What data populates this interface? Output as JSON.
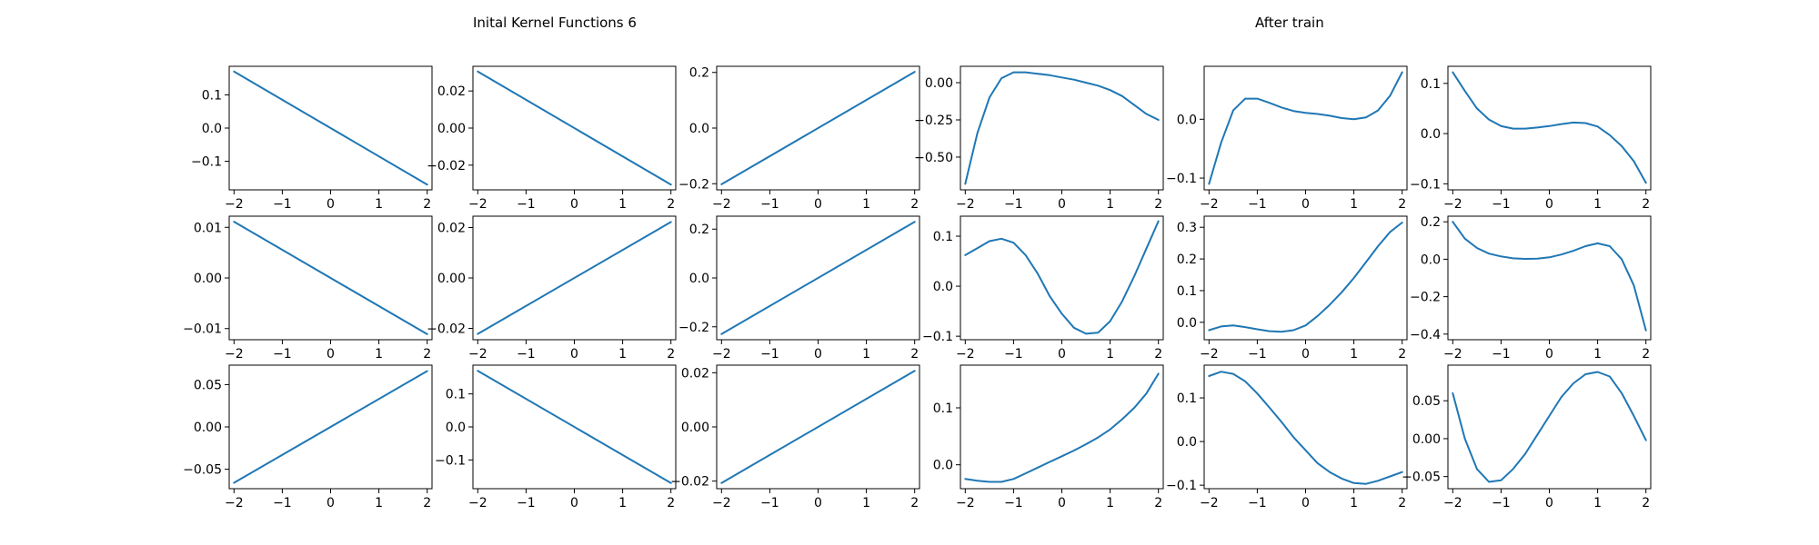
{
  "titles": {
    "left": "Inital Kernel Functions 6",
    "right": "After train"
  },
  "colors": {
    "line": "#1f77b4",
    "axes": "#000000",
    "background": "#ffffff"
  },
  "chart_data": [
    {
      "type": "line",
      "xlim": [
        -2.1,
        2.1
      ],
      "ylim": [
        -0.186,
        0.186
      ],
      "xticks": [
        -2,
        -1,
        0,
        1,
        2
      ],
      "yticks": [
        -0.1,
        0.0,
        0.1
      ],
      "series": [
        {
          "x": [
            -2,
            2
          ],
          "y": [
            0.17,
            -0.17
          ]
        }
      ]
    },
    {
      "type": "line",
      "xlim": [
        -2.1,
        2.1
      ],
      "ylim": [
        -0.0333,
        0.0333
      ],
      "xticks": [
        -2,
        -1,
        0,
        1,
        2
      ],
      "yticks": [
        -0.02,
        0.0,
        0.02
      ],
      "series": [
        {
          "x": [
            -2,
            2
          ],
          "y": [
            0.0305,
            -0.0305
          ]
        }
      ]
    },
    {
      "type": "line",
      "xlim": [
        -2.1,
        2.1
      ],
      "ylim": [
        -0.222,
        0.222
      ],
      "xticks": [
        -2,
        -1,
        0,
        1,
        2
      ],
      "yticks": [
        -0.2,
        0.0,
        0.2
      ],
      "series": [
        {
          "x": [
            -2,
            2
          ],
          "y": [
            -0.202,
            0.202
          ]
        }
      ]
    },
    {
      "type": "line",
      "xlim": [
        -2.1,
        2.1
      ],
      "ylim": [
        -0.72,
        0.11
      ],
      "xticks": [
        -2,
        -1,
        0,
        1,
        2
      ],
      "yticks": [
        -0.5,
        -0.25,
        0.0
      ],
      "series": [
        {
          "x": [
            -2,
            -1.75,
            -1.5,
            -1.25,
            -1,
            -0.75,
            -0.5,
            -0.25,
            0,
            0.25,
            0.5,
            0.75,
            1,
            1.25,
            1.5,
            1.75,
            2
          ],
          "y": [
            -0.68,
            -0.34,
            -0.1,
            0.03,
            0.07,
            0.07,
            0.06,
            0.05,
            0.035,
            0.02,
            0.0,
            -0.02,
            -0.05,
            -0.09,
            -0.15,
            -0.21,
            -0.25
          ]
        }
      ]
    },
    {
      "type": "line",
      "xlim": [
        -2.1,
        2.1
      ],
      "ylim": [
        -0.12,
        0.09
      ],
      "xticks": [
        -2,
        -1,
        0,
        1,
        2
      ],
      "yticks": [
        -0.1,
        0.0
      ],
      "series": [
        {
          "x": [
            -2,
            -1.75,
            -1.5,
            -1.25,
            -1,
            -0.75,
            -0.5,
            -0.25,
            0,
            0.25,
            0.5,
            0.75,
            1,
            1.25,
            1.5,
            1.75,
            2
          ],
          "y": [
            -0.11,
            -0.04,
            0.015,
            0.035,
            0.035,
            0.028,
            0.02,
            0.014,
            0.011,
            0.009,
            0.006,
            0.002,
            0.0,
            0.003,
            0.015,
            0.04,
            0.08
          ]
        }
      ]
    },
    {
      "type": "line",
      "xlim": [
        -2.1,
        2.1
      ],
      "ylim": [
        -0.112,
        0.134
      ],
      "xticks": [
        -2,
        -1,
        0,
        1,
        2
      ],
      "yticks": [
        -0.1,
        0.0,
        0.1
      ],
      "series": [
        {
          "x": [
            -2,
            -1.75,
            -1.5,
            -1.25,
            -1,
            -0.75,
            -0.5,
            -0.25,
            0,
            0.25,
            0.5,
            0.75,
            1,
            1.25,
            1.5,
            1.75,
            2
          ],
          "y": [
            0.122,
            0.085,
            0.05,
            0.028,
            0.015,
            0.01,
            0.01,
            0.012,
            0.015,
            0.019,
            0.022,
            0.021,
            0.014,
            -0.003,
            -0.025,
            -0.055,
            -0.098
          ]
        }
      ]
    },
    {
      "type": "line",
      "xlim": [
        -2.1,
        2.1
      ],
      "ylim": [
        -0.0122,
        0.0122
      ],
      "xticks": [
        -2,
        -1,
        0,
        1,
        2
      ],
      "yticks": [
        -0.01,
        0.0,
        0.01
      ],
      "series": [
        {
          "x": [
            -2,
            2
          ],
          "y": [
            0.0111,
            -0.0111
          ]
        }
      ]
    },
    {
      "type": "line",
      "xlim": [
        -2.1,
        2.1
      ],
      "ylim": [
        -0.0245,
        0.0245
      ],
      "xticks": [
        -2,
        -1,
        0,
        1,
        2
      ],
      "yticks": [
        -0.02,
        0.0,
        0.02
      ],
      "series": [
        {
          "x": [
            -2,
            2
          ],
          "y": [
            -0.0222,
            0.0222
          ]
        }
      ]
    },
    {
      "type": "line",
      "xlim": [
        -2.1,
        2.1
      ],
      "ylim": [
        -0.253,
        0.253
      ],
      "xticks": [
        -2,
        -1,
        0,
        1,
        2
      ],
      "yticks": [
        -0.2,
        0.0,
        0.2
      ],
      "series": [
        {
          "x": [
            -2,
            2
          ],
          "y": [
            -0.23,
            0.23
          ]
        }
      ]
    },
    {
      "type": "line",
      "xlim": [
        -2.1,
        2.1
      ],
      "ylim": [
        -0.107,
        0.14
      ],
      "xticks": [
        -2,
        -1,
        0,
        1,
        2
      ],
      "yticks": [
        -0.1,
        0.0,
        0.1
      ],
      "series": [
        {
          "x": [
            -2,
            -1.75,
            -1.5,
            -1.25,
            -1,
            -0.75,
            -0.5,
            -0.25,
            0,
            0.25,
            0.5,
            0.75,
            1,
            1.25,
            1.5,
            1.75,
            2
          ],
          "y": [
            0.062,
            0.076,
            0.09,
            0.095,
            0.087,
            0.062,
            0.025,
            -0.02,
            -0.055,
            -0.083,
            -0.095,
            -0.093,
            -0.07,
            -0.03,
            0.02,
            0.075,
            0.13
          ]
        }
      ]
    },
    {
      "type": "line",
      "xlim": [
        -2.1,
        2.1
      ],
      "ylim": [
        -0.055,
        0.335
      ],
      "xticks": [
        -2,
        -1,
        0,
        1,
        2
      ],
      "yticks": [
        0.0,
        0.1,
        0.2,
        0.3
      ],
      "series": [
        {
          "x": [
            -2,
            -1.75,
            -1.5,
            -1.25,
            -1,
            -0.75,
            -0.5,
            -0.25,
            0,
            0.25,
            0.5,
            0.75,
            1,
            1.25,
            1.5,
            1.75,
            2
          ],
          "y": [
            -0.025,
            -0.013,
            -0.01,
            -0.015,
            -0.022,
            -0.028,
            -0.03,
            -0.025,
            -0.01,
            0.02,
            0.055,
            0.095,
            0.14,
            0.19,
            0.24,
            0.285,
            0.315
          ]
        }
      ]
    },
    {
      "type": "line",
      "xlim": [
        -2.1,
        2.1
      ],
      "ylim": [
        -0.43,
        0.23
      ],
      "xticks": [
        -2,
        -1,
        0,
        1,
        2
      ],
      "yticks": [
        -0.4,
        -0.2,
        0.0,
        0.2
      ],
      "series": [
        {
          "x": [
            -2,
            -1.75,
            -1.5,
            -1.25,
            -1,
            -0.75,
            -0.5,
            -0.25,
            0,
            0.25,
            0.5,
            0.75,
            1,
            1.25,
            1.5,
            1.75,
            2
          ],
          "y": [
            0.2,
            0.11,
            0.06,
            0.03,
            0.015,
            0.005,
            0.002,
            0.003,
            0.01,
            0.025,
            0.045,
            0.07,
            0.085,
            0.07,
            0.0,
            -0.14,
            -0.38
          ]
        }
      ]
    },
    {
      "type": "line",
      "xlim": [
        -2.1,
        2.1
      ],
      "ylim": [
        -0.073,
        0.073
      ],
      "xticks": [
        -2,
        -1,
        0,
        1,
        2
      ],
      "yticks": [
        -0.05,
        0.0,
        0.05
      ],
      "series": [
        {
          "x": [
            -2,
            2
          ],
          "y": [
            -0.066,
            0.066
          ]
        }
      ]
    },
    {
      "type": "line",
      "xlim": [
        -2.1,
        2.1
      ],
      "ylim": [
        -0.187,
        0.187
      ],
      "xticks": [
        -2,
        -1,
        0,
        1,
        2
      ],
      "yticks": [
        -0.1,
        0.0,
        0.1
      ],
      "series": [
        {
          "x": [
            -2,
            2
          ],
          "y": [
            0.17,
            -0.17
          ]
        }
      ]
    },
    {
      "type": "line",
      "xlim": [
        -2.1,
        2.1
      ],
      "ylim": [
        -0.0228,
        0.0228
      ],
      "xticks": [
        -2,
        -1,
        0,
        1,
        2
      ],
      "yticks": [
        -0.02,
        0.0,
        0.02
      ],
      "series": [
        {
          "x": [
            -2,
            2
          ],
          "y": [
            -0.0207,
            0.0207
          ]
        }
      ]
    },
    {
      "type": "line",
      "xlim": [
        -2.1,
        2.1
      ],
      "ylim": [
        -0.042,
        0.175
      ],
      "xticks": [
        -2,
        -1,
        0,
        1,
        2
      ],
      "yticks": [
        0.0,
        0.1
      ],
      "series": [
        {
          "x": [
            -2,
            -1.75,
            -1.5,
            -1.25,
            -1,
            -0.75,
            -0.5,
            -0.25,
            0,
            0.25,
            0.5,
            0.75,
            1,
            1.25,
            1.5,
            1.75,
            2
          ],
          "y": [
            -0.025,
            -0.028,
            -0.03,
            -0.03,
            -0.025,
            -0.015,
            -0.005,
            0.005,
            0.015,
            0.025,
            0.036,
            0.048,
            0.062,
            0.08,
            0.1,
            0.125,
            0.16
          ]
        }
      ]
    },
    {
      "type": "line",
      "xlim": [
        -2.1,
        2.1
      ],
      "ylim": [
        -0.108,
        0.175
      ],
      "xticks": [
        -2,
        -1,
        0,
        1,
        2
      ],
      "yticks": [
        -0.1,
        0.0,
        0.1
      ],
      "series": [
        {
          "x": [
            -2,
            -1.75,
            -1.5,
            -1.25,
            -1,
            -0.75,
            -0.5,
            -0.25,
            0,
            0.25,
            0.5,
            0.75,
            1,
            1.25,
            1.5,
            1.75,
            2
          ],
          "y": [
            0.15,
            0.16,
            0.155,
            0.138,
            0.11,
            0.078,
            0.045,
            0.01,
            -0.02,
            -0.05,
            -0.07,
            -0.085,
            -0.095,
            -0.097,
            -0.09,
            -0.08,
            -0.07
          ]
        }
      ]
    },
    {
      "type": "line",
      "xlim": [
        -2.1,
        2.1
      ],
      "ylim": [
        -0.066,
        0.097
      ],
      "xticks": [
        -2,
        -1,
        0,
        1,
        2
      ],
      "yticks": [
        -0.05,
        0.0,
        0.05
      ],
      "series": [
        {
          "x": [
            -2,
            -1.75,
            -1.5,
            -1.25,
            -1,
            -0.75,
            -0.5,
            -0.25,
            0,
            0.25,
            0.5,
            0.75,
            1,
            1.25,
            1.5,
            1.75,
            2
          ],
          "y": [
            0.06,
            0.0,
            -0.04,
            -0.057,
            -0.055,
            -0.04,
            -0.02,
            0.005,
            0.03,
            0.055,
            0.073,
            0.085,
            0.088,
            0.082,
            0.06,
            0.03,
            -0.002
          ]
        }
      ]
    }
  ]
}
